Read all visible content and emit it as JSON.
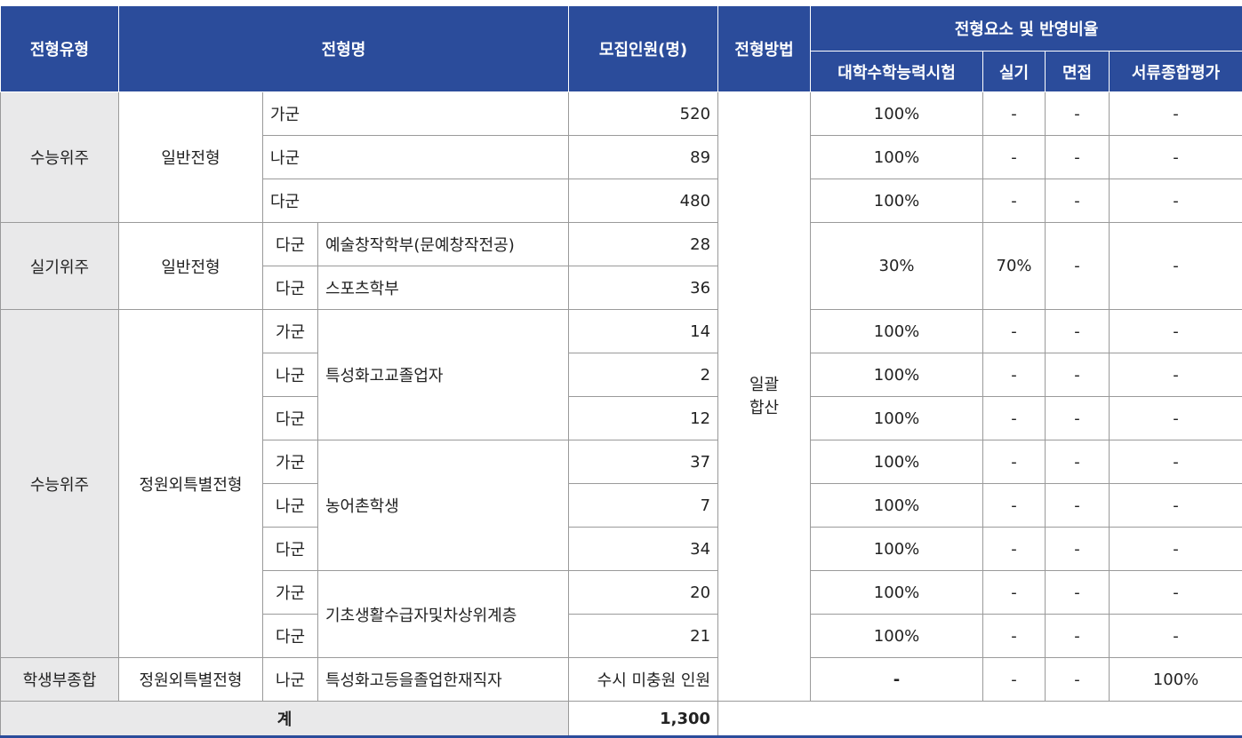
{
  "header": {
    "type": "전형유형",
    "name": "전형명",
    "count": "모집인원(명)",
    "method": "전형방법",
    "elements": "전형요소 및 반영비율",
    "sub": [
      "대학수학능력시험",
      "실기",
      "면접",
      "서류종합평가"
    ]
  },
  "method": {
    "line1": "일괄",
    "line2": "합산"
  },
  "groups": {
    "g1": {
      "type": "수능위주",
      "name": "일반전형"
    },
    "g2": {
      "type": "실기위주",
      "name": "일반전형"
    },
    "g3": {
      "type": "수능위주",
      "name": "정원외특별전형",
      "sub1": "특성화고교졸업자",
      "sub2": "농어촌학생",
      "sub3": "기초생활수급자및차상위계층"
    },
    "g4": {
      "type": "학생부종합",
      "name": "정원외특별전형",
      "sub": "특성화고등을졸업한재직자"
    },
    "g2sub": [
      "예술창작학부(문예창작전공)",
      "스포츠학부"
    ]
  },
  "rows": [
    {
      "gun": "가군",
      "count": "520",
      "suneung": "100%",
      "silgi": "-",
      "interview": "-",
      "docs": "-"
    },
    {
      "gun": "나군",
      "count": "89",
      "suneung": "100%",
      "silgi": "-",
      "interview": "-",
      "docs": "-"
    },
    {
      "gun": "다군",
      "count": "480",
      "suneung": "100%",
      "silgi": "-",
      "interview": "-",
      "docs": "-"
    },
    {
      "gun": "다군",
      "count": "28",
      "suneung": "30%",
      "silgi": "70%",
      "interview": "-",
      "docs": "-"
    },
    {
      "gun": "다군",
      "count": "36"
    },
    {
      "gun": "가군",
      "count": "14",
      "suneung": "100%",
      "silgi": "-",
      "interview": "-",
      "docs": "-"
    },
    {
      "gun": "나군",
      "count": "2",
      "suneung": "100%",
      "silgi": "-",
      "interview": "-",
      "docs": "-"
    },
    {
      "gun": "다군",
      "count": "12",
      "suneung": "100%",
      "silgi": "-",
      "interview": "-",
      "docs": "-"
    },
    {
      "gun": "가군",
      "count": "37",
      "suneung": "100%",
      "silgi": "-",
      "interview": "-",
      "docs": "-"
    },
    {
      "gun": "나군",
      "count": "7",
      "suneung": "100%",
      "silgi": "-",
      "interview": "-",
      "docs": "-"
    },
    {
      "gun": "다군",
      "count": "34",
      "suneung": "100%",
      "silgi": "-",
      "interview": "-",
      "docs": "-"
    },
    {
      "gun": "가군",
      "count": "20",
      "suneung": "100%",
      "silgi": "-",
      "interview": "-",
      "docs": "-"
    },
    {
      "gun": "다군",
      "count": "21",
      "suneung": "100%",
      "silgi": "-",
      "interview": "-",
      "docs": "-"
    },
    {
      "gun": "나군",
      "count": "수시 미충원 인원",
      "suneung": "-",
      "silgi": "-",
      "interview": "-",
      "docs": "100%"
    }
  ],
  "total": {
    "label": "계",
    "value": "1,300"
  },
  "colors": {
    "header": "#2b4c9b",
    "stub": "#e9e9ea"
  }
}
